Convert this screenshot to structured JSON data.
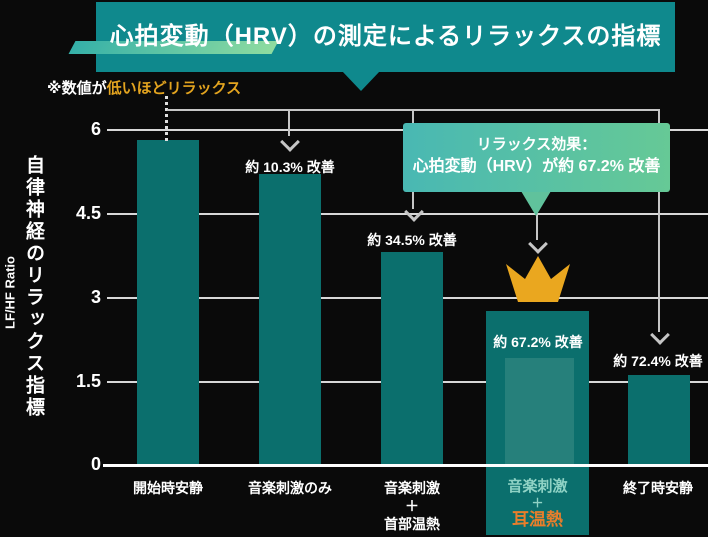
{
  "title": "心拍変動（HRV）の測定によるリラックスの指標",
  "note": {
    "prefix": "※数値が",
    "highlight": "低いほどリラックス"
  },
  "y_axis": {
    "label_jp": "自律神経のリラックス指標",
    "label_en": "LF/HF Ratio"
  },
  "callout": {
    "line1": "リラックス効果：",
    "line2": "心拍変動（HRV）が約 67.2% 改善"
  },
  "x_labels": {
    "l1": "開始時安静",
    "l2": "音楽刺激のみ",
    "l3a": "音楽刺激",
    "l3b": "＋",
    "l3c": "首部温熱",
    "l4a": "音楽刺激",
    "l4b": "＋",
    "l4c": "耳温熱",
    "l5": "終了時安静"
  },
  "chart_data": {
    "type": "bar",
    "categories": [
      "開始時安静",
      "音楽刺激のみ",
      "音楽刺激＋首部温熱",
      "音楽刺激＋耳温熱",
      "終了時安静"
    ],
    "values": [
      5.8,
      5.2,
      3.8,
      1.9,
      1.6
    ],
    "improvement_labels": [
      "",
      "約 10.3% 改善",
      "約 34.5% 改善",
      "約 67.2% 改善",
      "約 72.4% 改善"
    ],
    "yticks": [
      "6",
      "4.5",
      "3",
      "1.5",
      "0"
    ],
    "ylim": [
      0,
      6
    ],
    "ylabel": "自律神経のリラックス指標（LF/HF Ratio）",
    "grid": true,
    "highlighted_category_index": 3,
    "highlight_marker": "crown"
  },
  "colors": {
    "background": "#0a0a0a",
    "bar": "#0b6f6d",
    "bar_highlighted": "#26807b",
    "title_box": "#0f898d",
    "title_underline_gradient": [
      "#35b0a8",
      "#8fdca0"
    ],
    "callout_gradient": [
      "#49b8b3",
      "#66c996"
    ],
    "crown": "#eaa71f",
    "note_highlight": "#e3a41f",
    "label_mint": "#8fd2c5",
    "label_orange": "#e87e2b",
    "gridline": "#d8d8d8",
    "arrow": "#c6c6c6"
  }
}
